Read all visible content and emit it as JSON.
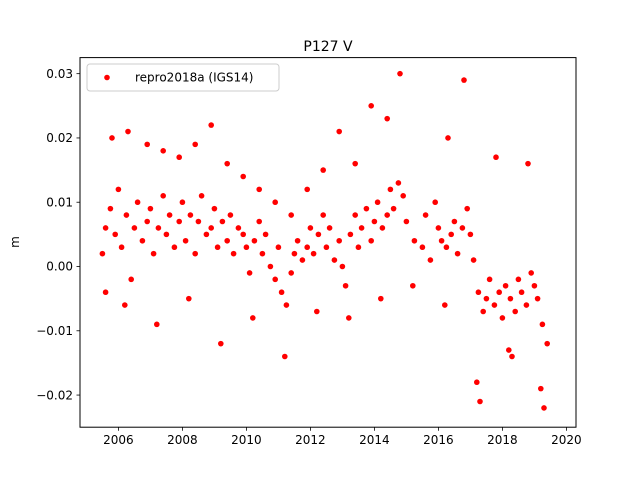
{
  "chart_data": {
    "type": "scatter",
    "title": "P127 V",
    "xlabel": "",
    "ylabel": "m",
    "xlim": [
      2004.8,
      2020.3
    ],
    "ylim": [
      -0.025,
      0.0325
    ],
    "x_ticks": [
      2006,
      2008,
      2010,
      2012,
      2014,
      2016,
      2018,
      2020
    ],
    "y_ticks": [
      -0.02,
      -0.01,
      0.0,
      0.01,
      0.02,
      0.03
    ],
    "y_tick_labels": [
      "−0.02",
      "−0.01",
      "0.00",
      "0.01",
      "0.02",
      "0.03"
    ],
    "legend": {
      "placement": "top-left",
      "entries": [
        "repro2018a (IGS14)"
      ]
    },
    "grid": false,
    "series": [
      {
        "name": "repro2018a (IGS14)",
        "color": "#ff0000",
        "marker": "circle",
        "x": [
          2005.5,
          2005.6,
          2005.75,
          2005.9,
          2006.0,
          2006.1,
          2006.25,
          2006.4,
          2006.5,
          2006.6,
          2006.75,
          2006.9,
          2007.0,
          2007.1,
          2007.25,
          2007.4,
          2007.5,
          2007.6,
          2007.75,
          2007.9,
          2008.0,
          2008.1,
          2008.25,
          2008.4,
          2008.5,
          2008.6,
          2008.75,
          2008.9,
          2009.0,
          2009.1,
          2009.25,
          2009.4,
          2009.5,
          2009.6,
          2009.75,
          2009.9,
          2010.0,
          2010.1,
          2010.25,
          2010.4,
          2010.5,
          2010.6,
          2010.75,
          2010.9,
          2011.0,
          2011.1,
          2011.25,
          2011.4,
          2011.5,
          2011.6,
          2011.75,
          2011.9,
          2012.0,
          2012.1,
          2012.25,
          2012.4,
          2012.5,
          2012.6,
          2012.75,
          2012.9,
          2013.0,
          2013.1,
          2013.25,
          2013.4,
          2013.5,
          2013.6,
          2013.75,
          2013.9,
          2014.0,
          2014.1,
          2014.25,
          2014.4,
          2014.5,
          2014.6,
          2014.75,
          2014.9,
          2015.0,
          2015.25,
          2015.5,
          2015.6,
          2015.75,
          2015.9,
          2016.0,
          2016.1,
          2016.25,
          2016.4,
          2016.5,
          2016.6,
          2016.75,
          2016.9,
          2017.0,
          2017.1,
          2017.25,
          2017.4,
          2017.5,
          2017.6,
          2017.75,
          2017.9,
          2018.0,
          2018.1,
          2018.25,
          2018.4,
          2018.5,
          2018.6,
          2018.75,
          2018.9,
          2019.0,
          2019.1,
          2019.25,
          2019.4,
          2005.8,
          2006.3,
          2006.9,
          2007.4,
          2007.9,
          2008.4,
          2008.9,
          2009.4,
          2009.9,
          2010.4,
          2010.9,
          2011.4,
          2011.9,
          2012.4,
          2012.9,
          2013.4,
          2013.9,
          2014.4,
          2014.8,
          2016.3,
          2016.8,
          2017.3,
          2017.8,
          2018.3,
          2018.8,
          2019.3,
          2005.6,
          2006.2,
          2007.2,
          2008.2,
          2009.2,
          2010.2,
          2011.2,
          2012.2,
          2013.2,
          2014.2,
          2015.2,
          2016.2,
          2017.2,
          2018.2,
          2019.2
        ],
        "y": [
          0.002,
          0.006,
          0.009,
          0.005,
          0.012,
          0.003,
          0.008,
          -0.002,
          0.006,
          0.01,
          0.004,
          0.007,
          0.009,
          0.002,
          0.006,
          0.011,
          0.005,
          0.008,
          0.003,
          0.007,
          0.01,
          0.004,
          0.008,
          0.002,
          0.007,
          0.011,
          0.005,
          0.006,
          0.009,
          0.003,
          0.007,
          0.004,
          0.008,
          0.002,
          0.006,
          0.005,
          0.003,
          -0.001,
          0.004,
          0.007,
          0.002,
          0.005,
          0.0,
          -0.002,
          0.003,
          -0.004,
          -0.006,
          -0.001,
          0.002,
          0.004,
          0.001,
          0.003,
          0.006,
          0.002,
          0.005,
          0.008,
          0.003,
          0.006,
          0.001,
          0.004,
          0.0,
          -0.003,
          0.005,
          0.008,
          0.003,
          0.006,
          0.009,
          0.004,
          0.007,
          0.01,
          0.006,
          0.008,
          0.012,
          0.009,
          0.013,
          0.011,
          0.007,
          0.004,
          0.003,
          0.008,
          0.001,
          0.01,
          0.006,
          0.004,
          0.003,
          0.005,
          0.007,
          0.002,
          0.006,
          0.009,
          0.005,
          0.001,
          -0.004,
          -0.007,
          -0.005,
          -0.002,
          -0.006,
          -0.004,
          -0.008,
          -0.003,
          -0.005,
          -0.007,
          -0.002,
          -0.004,
          -0.006,
          -0.001,
          -0.003,
          -0.005,
          -0.009,
          -0.012,
          0.02,
          0.021,
          0.019,
          0.018,
          0.017,
          0.019,
          0.022,
          0.016,
          0.014,
          0.012,
          0.01,
          0.008,
          0.012,
          0.015,
          0.021,
          0.016,
          0.025,
          0.023,
          0.03,
          0.02,
          0.029,
          -0.021,
          0.017,
          -0.014,
          0.016,
          -0.022,
          -0.004,
          -0.006,
          -0.009,
          -0.005,
          -0.012,
          -0.008,
          -0.014,
          -0.007,
          -0.008,
          -0.005,
          -0.003,
          -0.006,
          -0.018,
          -0.013,
          -0.019
        ]
      }
    ]
  }
}
